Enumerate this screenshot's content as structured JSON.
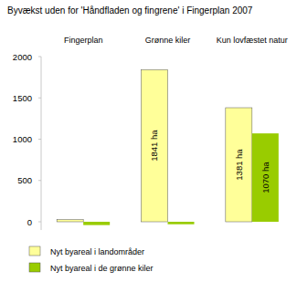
{
  "chart_data": {
    "type": "bar",
    "title": "Byvækst uden for 'Håndfladen og fingrene' i Fingerplan 2007",
    "categories": [
      "Fingerplan",
      "Grønne kiler",
      "Kun lovfæstet natur"
    ],
    "series": [
      {
        "name": "Nyt byareal i landområder",
        "color": "#ffff99",
        "values": [
          25,
          1841,
          1381
        ],
        "value_labels": [
          null,
          "1841 ha",
          "1381 ha"
        ]
      },
      {
        "name": "Nyt byareal i de grønne kiler",
        "color": "#99cc00",
        "values": [
          -40,
          -30,
          1070
        ],
        "value_labels": [
          null,
          null,
          "1070 ha"
        ]
      }
    ],
    "ylim": [
      -100,
      2000
    ],
    "yticks": [
      0,
      500,
      1000,
      1500,
      2000
    ],
    "grid": false,
    "legend": "bottom",
    "data_labels": true
  }
}
